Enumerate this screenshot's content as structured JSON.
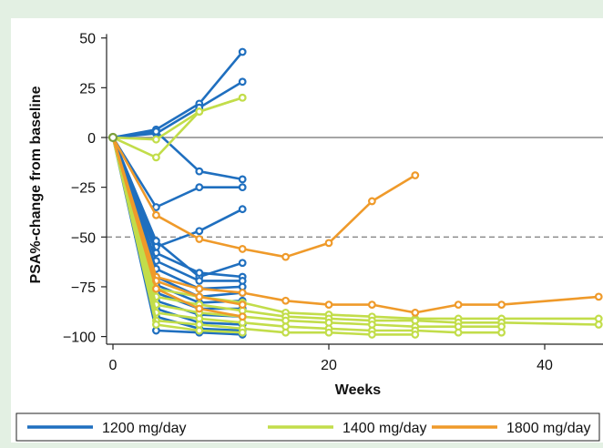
{
  "chart_data": {
    "type": "line",
    "title": "",
    "xlabel": "Weeks",
    "ylabel": "PSA%-change from baseline",
    "xlim": [
      -1,
      45
    ],
    "ylim": [
      -105,
      52
    ],
    "x_ticks": [
      0,
      20,
      40
    ],
    "y_ticks": [
      50,
      25,
      0,
      -25,
      -50,
      -75,
      -100
    ],
    "y_tick_labels": [
      "50",
      "25",
      "0",
      "−25",
      "−50",
      "−75",
      "−100"
    ],
    "reference_lines": [
      {
        "y": 0,
        "style": "solid"
      },
      {
        "y": -50,
        "style": "dashed"
      }
    ],
    "legend_position": "bottom",
    "series": [
      {
        "name": "1200 mg/day",
        "color": "#1f6fbf",
        "lines": [
          {
            "x": [
              0,
              4,
              8,
              12
            ],
            "y": [
              0,
              4,
              17,
              43
            ]
          },
          {
            "x": [
              0,
              4,
              8,
              12
            ],
            "y": [
              0,
              2,
              15,
              28
            ]
          },
          {
            "x": [
              0,
              4,
              8,
              12
            ],
            "y": [
              0,
              3,
              -17,
              -21
            ]
          },
          {
            "x": [
              0,
              4,
              8,
              12
            ],
            "y": [
              0,
              -35,
              -25,
              -25
            ]
          },
          {
            "x": [
              0,
              4,
              8,
              12
            ],
            "y": [
              0,
              -55,
              -47,
              -36
            ]
          },
          {
            "x": [
              0,
              4,
              8,
              12
            ],
            "y": [
              0,
              -52,
              -70,
              -63
            ]
          },
          {
            "x": [
              0,
              4,
              8,
              12
            ],
            "y": [
              0,
              -58,
              -68,
              -70
            ]
          },
          {
            "x": [
              0,
              4,
              8,
              12
            ],
            "y": [
              0,
              -62,
              -72,
              -72
            ]
          },
          {
            "x": [
              0,
              4,
              8,
              12
            ],
            "y": [
              0,
              -66,
              -76,
              -75
            ]
          },
          {
            "x": [
              0,
              4,
              8,
              12
            ],
            "y": [
              0,
              -70,
              -80,
              -78
            ]
          },
          {
            "x": [
              0,
              4,
              8,
              12
            ],
            "y": [
              0,
              -74,
              -83,
              -82
            ]
          },
          {
            "x": [
              0,
              4,
              8,
              12
            ],
            "y": [
              0,
              -78,
              -86,
              -86
            ]
          },
          {
            "x": [
              0,
              4,
              8,
              12
            ],
            "y": [
              0,
              -82,
              -89,
              -90
            ]
          },
          {
            "x": [
              0,
              4,
              8,
              12
            ],
            "y": [
              0,
              -86,
              -93,
              -94
            ]
          },
          {
            "x": [
              0,
              4,
              8,
              12
            ],
            "y": [
              0,
              -90,
              -96,
              -97
            ]
          },
          {
            "x": [
              0,
              4,
              8,
              12
            ],
            "y": [
              0,
              -97,
              -98,
              -99
            ]
          }
        ]
      },
      {
        "name": "1400 mg/day",
        "color": "#c2dd4a",
        "lines": [
          {
            "x": [
              0,
              4,
              8,
              12
            ],
            "y": [
              0,
              -10,
              13,
              20
            ]
          },
          {
            "x": [
              0,
              4,
              8,
              12
            ],
            "y": [
              0,
              -1,
              13,
              20
            ]
          },
          {
            "x": [
              0,
              4,
              8,
              12,
              16,
              20,
              24,
              28,
              32,
              36,
              45
            ],
            "y": [
              0,
              -76,
              -80,
              -83,
              -88,
              -89,
              -90,
              -91,
              -91,
              -91,
              -91
            ]
          },
          {
            "x": [
              0,
              4,
              8,
              12,
              16,
              20,
              24,
              28,
              32,
              36,
              45
            ],
            "y": [
              0,
              -80,
              -84,
              -87,
              -90,
              -91,
              -92,
              -92,
              -93,
              -93,
              -94
            ]
          },
          {
            "x": [
              0,
              4,
              8,
              12,
              16,
              20,
              24,
              28,
              32,
              36
            ],
            "y": [
              0,
              -84,
              -88,
              -90,
              -92,
              -93,
              -94,
              -95,
              -95,
              -95
            ]
          },
          {
            "x": [
              0,
              4,
              8,
              12,
              16,
              20,
              24,
              28,
              32,
              36
            ],
            "y": [
              0,
              -88,
              -91,
              -93,
              -95,
              -96,
              -97,
              -97,
              -98,
              -98
            ]
          },
          {
            "x": [
              0,
              4,
              8,
              12,
              16,
              20,
              24,
              28
            ],
            "y": [
              0,
              -92,
              -94,
              -96,
              -98,
              -98,
              -99,
              -99
            ]
          },
          {
            "x": [
              0,
              4,
              8,
              12
            ],
            "y": [
              0,
              -94,
              -97,
              -98
            ]
          }
        ]
      },
      {
        "name": "1800 mg/day",
        "color": "#ef9a2a",
        "lines": [
          {
            "x": [
              0,
              4,
              8,
              12,
              16,
              20,
              24,
              28
            ],
            "y": [
              0,
              -39,
              -51,
              -56,
              -60,
              -53,
              -32,
              -19
            ]
          },
          {
            "x": [
              0,
              4,
              8,
              12,
              16,
              20,
              24,
              28,
              32,
              36,
              45
            ],
            "y": [
              0,
              -70,
              -76,
              -78,
              -82,
              -84,
              -84,
              -88,
              -84,
              -84,
              -80
            ]
          },
          {
            "x": [
              0,
              4,
              8,
              12
            ],
            "y": [
              0,
              -72,
              -80,
              -84
            ]
          },
          {
            "x": [
              0,
              4,
              8,
              12
            ],
            "y": [
              0,
              -76,
              -86,
              -90
            ]
          }
        ]
      }
    ]
  }
}
